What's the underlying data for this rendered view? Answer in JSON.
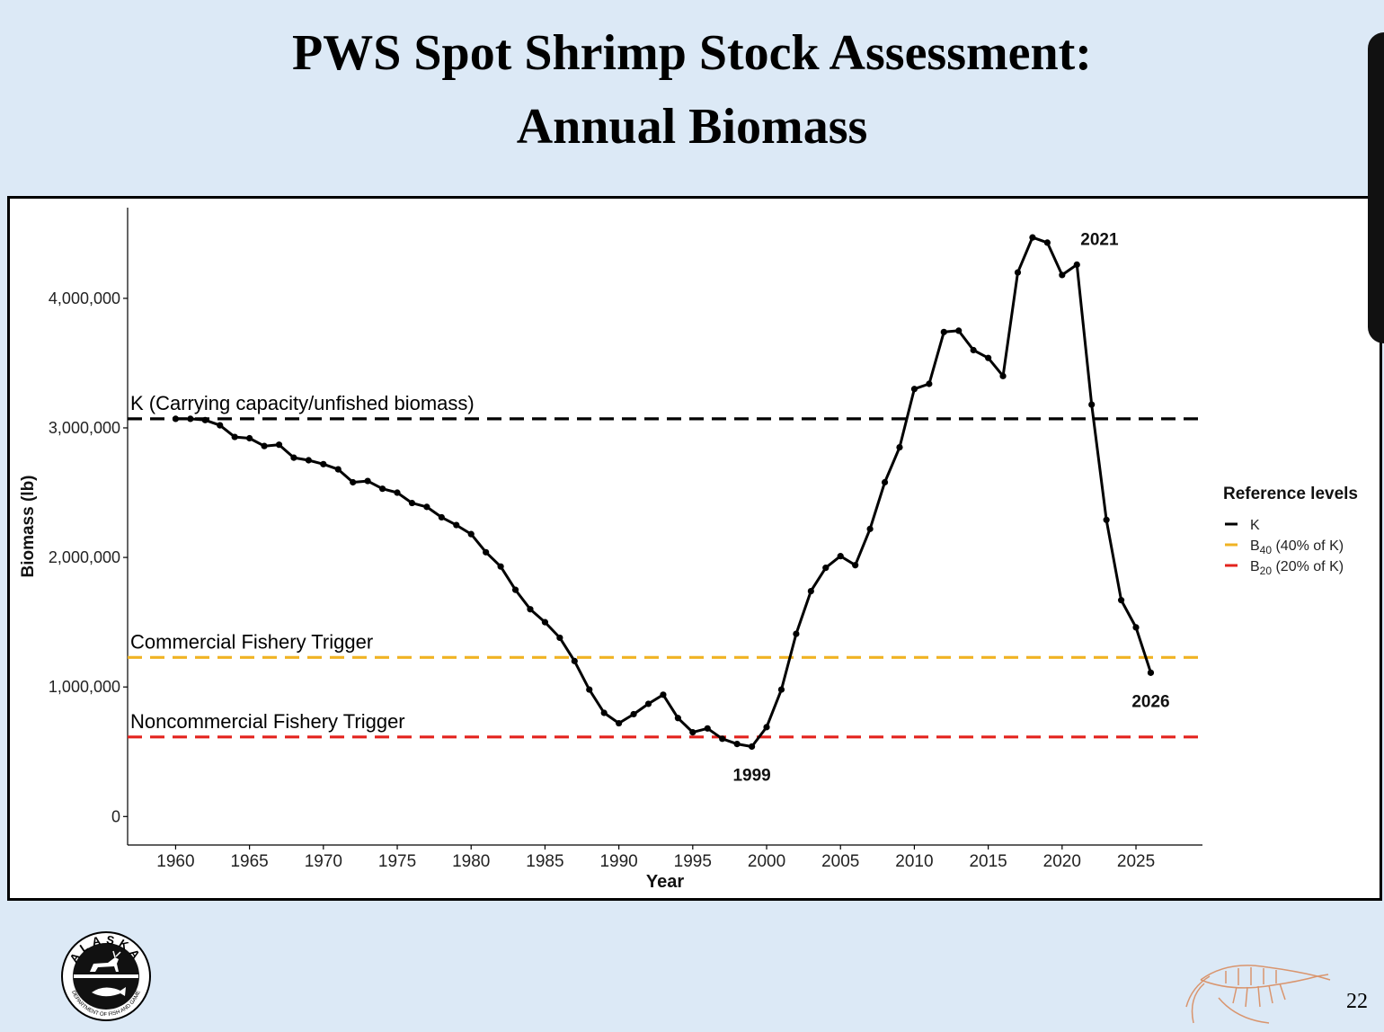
{
  "slide": {
    "title_line1": "PWS Spot Shrimp Stock Assessment:",
    "title_line2": "Annual Biomass",
    "page_number": "22",
    "logo_text": "ALASKA",
    "logo_ring_text": "DEPARTMENT OF FISH AND GAME"
  },
  "colors": {
    "background": "#dce9f6",
    "series": "#000000",
    "K": "#000000",
    "B40": "#f0b323",
    "B20": "#e3231e"
  },
  "chart_data": {
    "type": "line",
    "title": "",
    "xlabel": "Year",
    "ylabel": "Biomass (lb)",
    "xlim": [
      1956.75,
      2029.5
    ],
    "ylim": [
      -220000,
      4700000
    ],
    "x_ticks": [
      1960,
      1965,
      1970,
      1975,
      1980,
      1985,
      1990,
      1995,
      2000,
      2005,
      2010,
      2015,
      2020,
      2025
    ],
    "y_ticks": [
      0,
      1000000,
      2000000,
      3000000,
      4000000
    ],
    "y_tick_labels": [
      "0",
      "1,000,000",
      "2,000,000",
      "3,000,000",
      "4,000,000"
    ],
    "grid": false,
    "series": [
      {
        "name": "Biomass",
        "x": [
          1960,
          1961,
          1962,
          1963,
          1964,
          1965,
          1966,
          1967,
          1968,
          1969,
          1970,
          1971,
          1972,
          1973,
          1974,
          1975,
          1976,
          1977,
          1978,
          1979,
          1980,
          1981,
          1982,
          1983,
          1984,
          1985,
          1986,
          1987,
          1988,
          1989,
          1990,
          1991,
          1992,
          1993,
          1994,
          1995,
          1996,
          1997,
          1998,
          1999,
          2000,
          2001,
          2002,
          2003,
          2004,
          2005,
          2006,
          2007,
          2008,
          2009,
          2010,
          2011,
          2012,
          2013,
          2014,
          2015,
          2016,
          2017,
          2018,
          2019,
          2020,
          2021,
          2022,
          2023,
          2024,
          2025,
          2026
        ],
        "values": [
          3070000,
          3070000,
          3060000,
          3020000,
          2930000,
          2920000,
          2860000,
          2870000,
          2770000,
          2750000,
          2720000,
          2680000,
          2580000,
          2590000,
          2530000,
          2500000,
          2420000,
          2390000,
          2310000,
          2250000,
          2180000,
          2040000,
          1930000,
          1750000,
          1600000,
          1500000,
          1380000,
          1200000,
          980000,
          800000,
          720000,
          790000,
          870000,
          940000,
          760000,
          650000,
          680000,
          600000,
          560000,
          540000,
          690000,
          980000,
          1410000,
          1740000,
          1920000,
          2010000,
          1940000,
          2220000,
          2580000,
          2850000,
          3300000,
          3340000,
          3740000,
          3750000,
          3600000,
          3540000,
          3400000,
          4200000,
          4470000,
          4430000,
          4180000,
          4260000,
          3180000,
          2290000,
          1670000,
          1460000,
          1110000
        ]
      }
    ],
    "reference_lines": [
      {
        "key": "K",
        "value": 3070000,
        "label": "K (Carrying capacity/unfished biomass)",
        "color": "#000000"
      },
      {
        "key": "B40",
        "value": 1228000,
        "label": "Commercial Fishery Trigger",
        "color": "#f0b323"
      },
      {
        "key": "B20",
        "value": 614000,
        "label": "Noncommercial Fishery Trigger",
        "color": "#e3231e"
      }
    ],
    "annotations": [
      {
        "text": "2021",
        "x": 2021,
        "y": 4260000,
        "position": "above-right"
      },
      {
        "text": "1999",
        "x": 1999,
        "y": 540000,
        "position": "below"
      },
      {
        "text": "2026",
        "x": 2026,
        "y": 1110000,
        "position": "below"
      }
    ],
    "legend": {
      "title": "Reference levels",
      "placement": "right",
      "items": [
        {
          "key": "K",
          "label": "K",
          "sub": "",
          "rest": "",
          "color": "#000000"
        },
        {
          "key": "B40",
          "label": "B",
          "sub": "40",
          "rest": " (40% of K)",
          "color": "#f0b323"
        },
        {
          "key": "B20",
          "label": "B",
          "sub": "20",
          "rest": " (20% of K)",
          "color": "#e3231e"
        }
      ]
    }
  }
}
